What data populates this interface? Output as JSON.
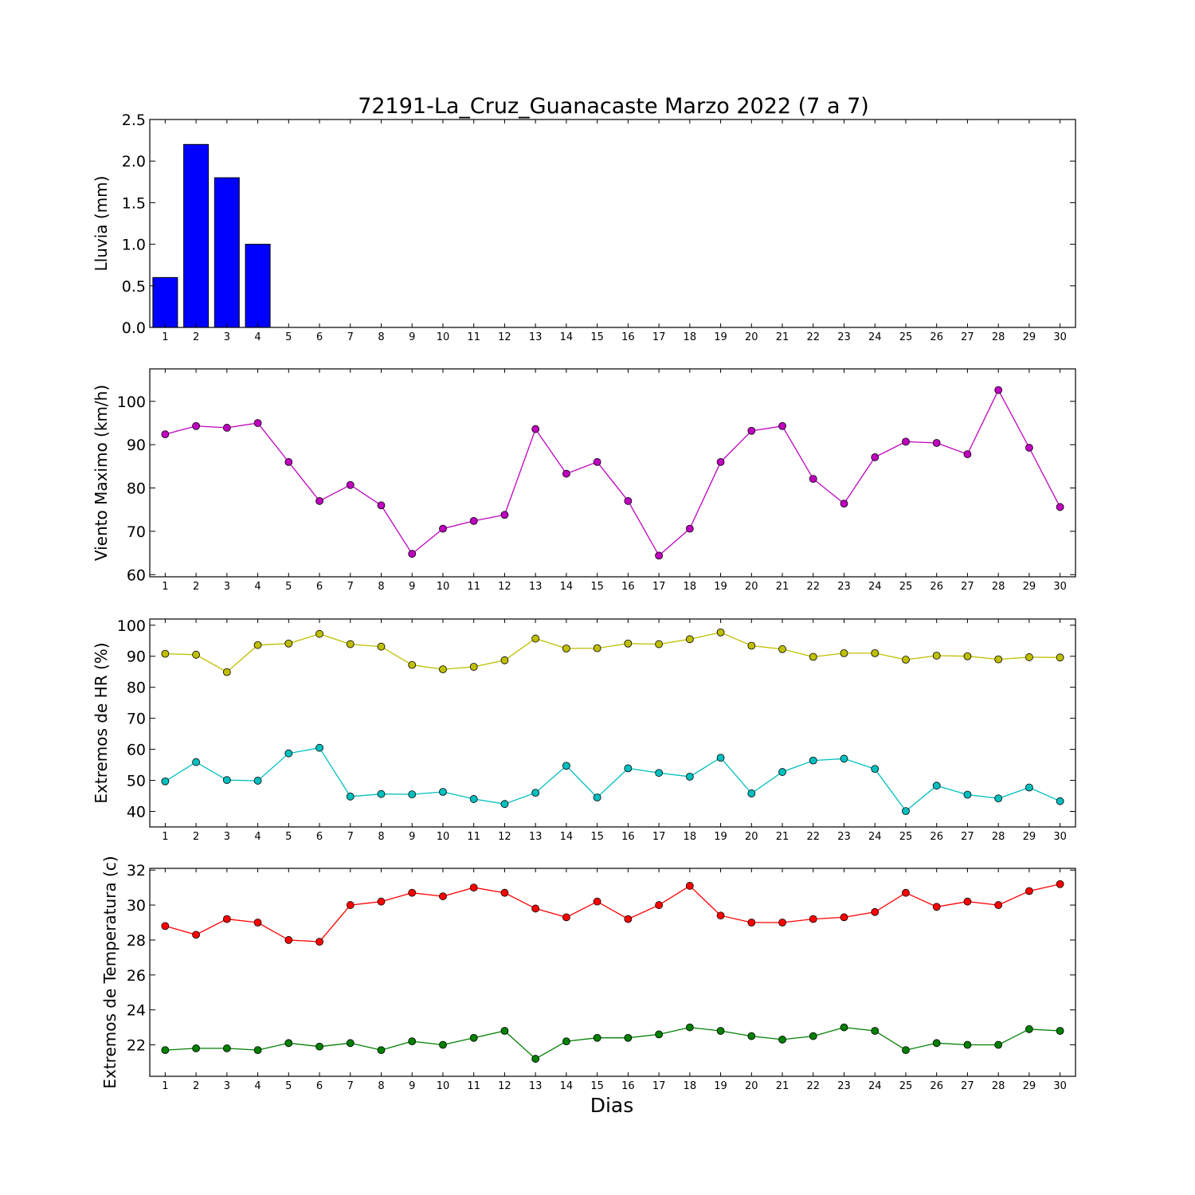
{
  "chart_data": {
    "title": "72191-La_Cruz_Guanacaste Marzo 2022  (7 a 7)",
    "xlabel": "Dias",
    "days": [
      1,
      2,
      3,
      4,
      5,
      6,
      7,
      8,
      9,
      10,
      11,
      12,
      13,
      14,
      15,
      16,
      17,
      18,
      19,
      20,
      21,
      22,
      23,
      24,
      25,
      26,
      27,
      28,
      29,
      30
    ],
    "panels": [
      {
        "type": "bar",
        "ylabel": "Lluvia (mm)",
        "ylim": [
          0,
          2.5
        ],
        "yticks": [
          "0.0",
          "0.5",
          "1.0",
          "1.5",
          "2.0",
          "2.5"
        ],
        "series": [
          {
            "color": "#0000ff",
            "values": [
              0.6,
              2.2,
              1.8,
              1.0,
              0,
              0,
              0,
              0,
              0,
              0,
              0,
              0,
              0,
              0,
              0,
              0,
              0,
              0,
              0,
              0,
              0,
              0,
              0,
              0,
              0,
              0,
              0,
              0,
              0,
              0
            ]
          }
        ]
      },
      {
        "type": "line",
        "ylabel": "Viento Maximo (km/h)",
        "ylim": [
          59.5,
          107.5
        ],
        "yticks": [
          "60",
          "70",
          "80",
          "90",
          "100"
        ],
        "series": [
          {
            "color": "#bf00bf",
            "values": [
              92.4,
              94.3,
              93.9,
              95.0,
              86.0,
              77.0,
              80.7,
              76.0,
              64.8,
              70.6,
              72.4,
              73.8,
              93.6,
              83.3,
              86.0,
              77.0,
              64.4,
              70.6,
              86.0,
              93.2,
              94.3,
              82.1,
              76.4,
              87.1,
              90.7,
              90.4,
              87.8,
              102.6,
              89.3,
              75.6
            ]
          }
        ]
      },
      {
        "type": "line",
        "ylabel": "Extremos de HR (%)",
        "ylim": [
          35,
          102
        ],
        "yticks": [
          "40",
          "50",
          "60",
          "70",
          "80",
          "90",
          "100"
        ],
        "series": [
          {
            "color": "#bfbf00",
            "values": [
              90.8,
              90.5,
              84.9,
              93.6,
              94.1,
              97.2,
              93.9,
              93.1,
              87.2,
              85.8,
              86.6,
              88.7,
              95.7,
              92.5,
              92.6,
              94.1,
              93.9,
              95.5,
              97.7,
              93.4,
              92.3,
              89.8,
              91.0,
              91.0,
              88.9,
              90.2,
              90.0,
              89.0,
              89.7,
              89.6
            ]
          },
          {
            "color": "#00bfbf",
            "values": [
              49.7,
              55.9,
              50.1,
              49.9,
              58.7,
              60.5,
              44.8,
              45.6,
              45.5,
              46.3,
              44.0,
              42.4,
              46.0,
              54.7,
              44.5,
              53.9,
              52.4,
              51.2,
              57.3,
              45.8,
              52.7,
              56.4,
              57.0,
              53.7,
              40.1,
              48.3,
              45.4,
              44.2,
              47.7,
              43.3
            ]
          }
        ]
      },
      {
        "type": "line",
        "ylabel": "Extremos de Temperatura (c)",
        "ylim": [
          20.2,
          32.1
        ],
        "yticks": [
          "22",
          "24",
          "26",
          "28",
          "30",
          "32"
        ],
        "series": [
          {
            "color": "#ff0000",
            "values": [
              28.8,
              28.3,
              29.2,
              29.0,
              28.0,
              27.9,
              30.0,
              30.2,
              30.7,
              30.5,
              31.0,
              30.7,
              29.8,
              29.3,
              30.2,
              29.2,
              30.0,
              31.1,
              29.4,
              29.0,
              29.0,
              29.2,
              29.3,
              29.6,
              30.7,
              29.9,
              30.2,
              30.0,
              30.8,
              31.2
            ]
          },
          {
            "color": "#007f00",
            "values": [
              21.7,
              21.8,
              21.8,
              21.7,
              22.1,
              21.9,
              22.1,
              21.7,
              22.2,
              22.0,
              22.4,
              22.8,
              21.2,
              22.2,
              22.4,
              22.4,
              22.6,
              23.0,
              22.8,
              22.5,
              22.3,
              22.5,
              23.0,
              22.8,
              21.7,
              22.1,
              22.0,
              22.0,
              22.9,
              22.8
            ]
          }
        ]
      }
    ]
  }
}
